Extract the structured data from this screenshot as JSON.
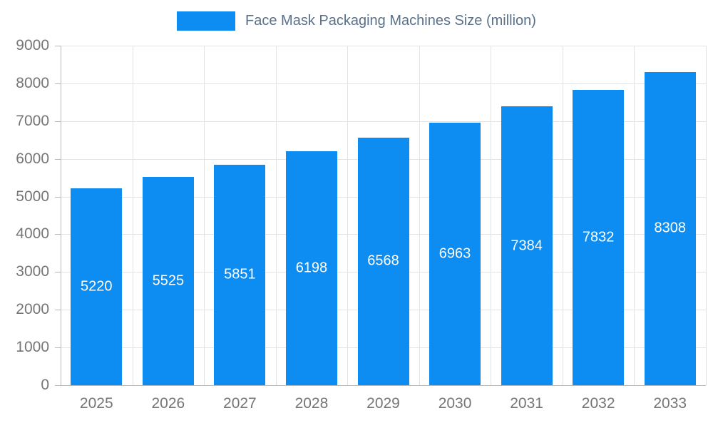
{
  "legend": {
    "label": "Face Mask Packaging Machines Size (million)"
  },
  "chart_data": {
    "type": "bar",
    "title": "Face Mask Packaging Machines Size (million)",
    "categories": [
      "2025",
      "2026",
      "2027",
      "2028",
      "2029",
      "2030",
      "2031",
      "2032",
      "2033"
    ],
    "values": [
      5220,
      5525,
      5851,
      6198,
      6568,
      6963,
      7384,
      7832,
      8308
    ],
    "xlabel": "",
    "ylabel": "",
    "ylim": [
      0,
      9000
    ],
    "ytick_interval": 1000,
    "grid": true,
    "legend_position": "top",
    "data_labels": true,
    "colors": {
      "bar": "#0d8cf2",
      "data_label": "#ffffff",
      "axis_label": "#757575",
      "legend_label": "#5a7089",
      "gridline": "#e3e3e3",
      "axis_line": "#b8b8b8"
    }
  }
}
